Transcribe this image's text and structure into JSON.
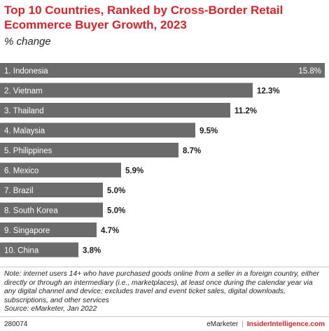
{
  "header": {
    "title": "Top 10 Countries, Ranked by Cross-Border Retail Ecommerce Buyer Growth, 2023",
    "subtitle": "% change"
  },
  "chart_data": {
    "type": "bar",
    "orientation": "horizontal",
    "title": "Top 10 Countries, Ranked by Cross-Border Retail Ecommerce Buyer Growth, 2023",
    "subtitle": "% change",
    "categories": [
      "1. Indonesia",
      "2. Vietnam",
      "3. Thailand",
      "4. Malaysia",
      "5. Philippines",
      "6. Mexico",
      "7. Brazil",
      "8. South Korea",
      "9. Singapore",
      "10. China"
    ],
    "values": [
      15.8,
      12.3,
      11.2,
      9.5,
      8.7,
      5.9,
      5.0,
      5.0,
      4.7,
      3.8
    ],
    "value_labels": [
      "15.8%",
      "12.3%",
      "11.2%",
      "9.5%",
      "8.7%",
      "5.9%",
      "5.0%",
      "5.0%",
      "4.7%",
      "3.8%"
    ],
    "xlim": [
      0,
      15.8
    ],
    "grid": false,
    "legend": "none",
    "bar_color": "#6b6b6b"
  },
  "footnote": {
    "note": "Note: internet users 14+ who have purchased goods online from a seller in a foreign country, either directly or through an intermediary (i.e., marketplaces), at least once during the calendar year via any digital channel and device; excludes travel and event ticket sales, digital downloads, subscriptions, and other services",
    "source": "Source: eMarketer, Jan 2022"
  },
  "footer": {
    "chart_id": "280074",
    "brand_1": "eMarketer",
    "separator": "|",
    "brand_2": "InsiderIntelligence.com"
  },
  "colors": {
    "title": "#d8232a",
    "bar": "#6b6b6b"
  }
}
